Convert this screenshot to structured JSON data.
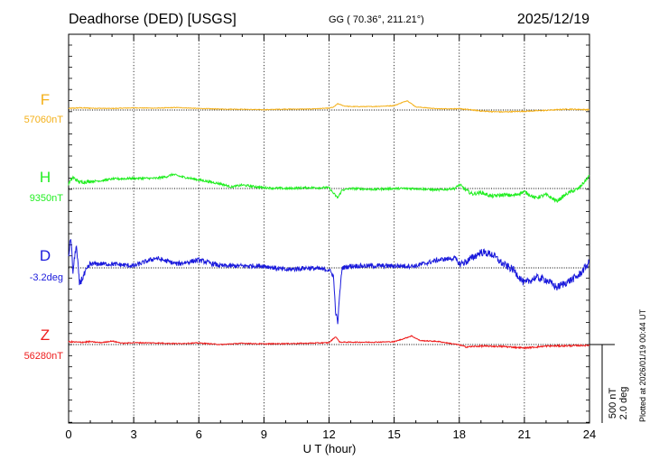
{
  "header": {
    "station": "Deadhorse (DED)  [USGS]",
    "coords": "GG ( 70.36°, 211.21°)",
    "date": "2025/12/19"
  },
  "plotted_note": "Plotted at 2026/01/19 00:44 UT",
  "scale": {
    "amplitude": "500 nT",
    "angle": "2.0 deg"
  },
  "chart_data": {
    "type": "line",
    "title": "Deadhorse (DED)  [USGS]",
    "xlabel": "U T (hour)",
    "ylabel": "",
    "xlim": [
      0,
      24
    ],
    "x_ticks": [
      0,
      3,
      6,
      9,
      12,
      15,
      18,
      21,
      24
    ],
    "x_tick_labels": [
      "0",
      "3",
      "6",
      "9",
      "12",
      "15",
      "18",
      "21",
      "24"
    ],
    "grid": true,
    "nt_per_scale_bar": 500,
    "series": [
      {
        "name": "F",
        "baseline_label": "57060nT",
        "color": "#f4b018",
        "unit": "nT",
        "noise": 2,
        "x": [
          0,
          0.5,
          1,
          2,
          3,
          4,
          5,
          6,
          7,
          8,
          9,
          10,
          11,
          12,
          12.2,
          12.4,
          12.7,
          13,
          14,
          15,
          15.6,
          16,
          17,
          18,
          18.5,
          19,
          19.5,
          20,
          21,
          22,
          23,
          24
        ],
        "values": [
          10,
          14,
          12,
          10,
          14,
          12,
          16,
          10,
          6,
          5,
          2,
          6,
          6,
          12,
          18,
          40,
          26,
          22,
          22,
          28,
          60,
          20,
          8,
          8,
          2,
          -6,
          -10,
          -12,
          -8,
          -2,
          6,
          2
        ]
      },
      {
        "name": "H",
        "baseline_label": "9350nT",
        "color": "#22ee22",
        "unit": "nT",
        "noise": 7,
        "x": [
          0,
          0.2,
          0.5,
          1,
          1.5,
          2,
          3,
          4,
          4.5,
          4.8,
          5.2,
          6,
          7,
          7.5,
          8,
          9,
          10,
          11,
          12,
          12.2,
          12.4,
          12.6,
          13,
          14,
          15,
          16,
          17,
          17.8,
          18,
          18.3,
          18.6,
          19,
          19.5,
          20,
          20.5,
          21,
          21.5,
          22,
          22.5,
          23,
          23.5,
          24
        ],
        "values": [
          30,
          70,
          40,
          45,
          50,
          60,
          65,
          65,
          75,
          90,
          75,
          55,
          30,
          10,
          22,
          5,
          0,
          5,
          5,
          -30,
          -60,
          -10,
          0,
          -5,
          0,
          0,
          -10,
          0,
          25,
          -10,
          -35,
          -25,
          -50,
          -40,
          -45,
          -20,
          -60,
          -40,
          -80,
          -30,
          0,
          80
        ]
      },
      {
        "name": "D",
        "baseline_label": "-3.2deg",
        "color": "#1a1adc",
        "unit": "deg",
        "deg_per_scale_bar": 2.0,
        "noise": 0.06,
        "x": [
          0,
          0.1,
          0.2,
          0.35,
          0.5,
          1,
          2,
          3,
          4,
          5,
          6,
          7,
          8,
          9,
          10,
          11,
          12,
          12.2,
          12.3,
          12.4,
          12.5,
          12.6,
          13,
          14,
          15,
          16,
          17,
          17.8,
          18,
          18.3,
          19,
          19.5,
          20,
          20.5,
          21,
          21.5,
          22,
          22.5,
          23,
          23.5,
          24
        ],
        "values": [
          0.3,
          0.8,
          -0.1,
          0.6,
          -0.4,
          0.1,
          0.1,
          0.05,
          0.25,
          0.1,
          0.2,
          0.05,
          0.05,
          0.05,
          -0.05,
          0.0,
          -0.05,
          -0.2,
          -1.1,
          -1.4,
          -0.6,
          0.0,
          0.05,
          0.05,
          0.05,
          0.05,
          0.2,
          0.25,
          0.1,
          0.15,
          0.4,
          0.35,
          0.1,
          -0.05,
          -0.4,
          -0.25,
          -0.3,
          -0.5,
          -0.35,
          -0.2,
          0.15
        ]
      },
      {
        "name": "Z",
        "baseline_label": "56280nT",
        "color": "#ee1c1c",
        "unit": "nT",
        "noise": 3,
        "x": [
          0,
          0.5,
          1,
          1.5,
          2,
          2.5,
          3,
          4,
          5,
          6,
          7,
          8,
          9,
          10,
          11,
          12,
          12.3,
          12.5,
          13,
          14,
          15,
          15.5,
          15.8,
          16.2,
          17,
          18,
          18.3,
          19,
          20,
          21,
          22,
          23,
          24
        ],
        "values": [
          18,
          14,
          18,
          12,
          22,
          8,
          12,
          10,
          6,
          10,
          0,
          8,
          4,
          6,
          8,
          12,
          50,
          15,
          15,
          15,
          18,
          40,
          55,
          25,
          20,
          -2,
          -15,
          -10,
          -12,
          -22,
          -10,
          -8,
          -5
        ]
      }
    ]
  }
}
